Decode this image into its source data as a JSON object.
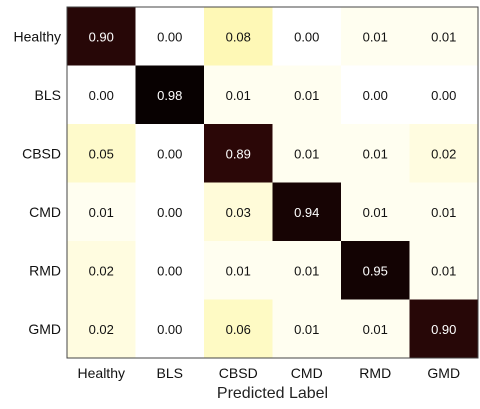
{
  "chart_data": {
    "type": "heatmap",
    "title": "",
    "xlabel": "Predicted Label",
    "ylabel": "",
    "x_categories": [
      "Healthy",
      "BLS",
      "CBSD",
      "CMD",
      "RMD",
      "GMD"
    ],
    "y_categories": [
      "Healthy",
      "BLS",
      "CBSD",
      "CMD",
      "RMD",
      "GMD"
    ],
    "values": [
      [
        0.9,
        0.0,
        0.08,
        0.0,
        0.01,
        0.01
      ],
      [
        0.0,
        0.98,
        0.01,
        0.01,
        0.0,
        0.0
      ],
      [
        0.05,
        0.0,
        0.89,
        0.01,
        0.01,
        0.02
      ],
      [
        0.01,
        0.0,
        0.03,
        0.94,
        0.01,
        0.01
      ],
      [
        0.02,
        0.0,
        0.01,
        0.01,
        0.95,
        0.01
      ],
      [
        0.02,
        0.0,
        0.06,
        0.01,
        0.01,
        0.9
      ]
    ],
    "value_format_decimals": 2,
    "colormap": {
      "low": "#ffffff",
      "light": "#fffce0",
      "mid_highlight": "#fdf7a8",
      "high": "#3a0a0a",
      "max": "#000000"
    },
    "grid": false,
    "legend": "none"
  }
}
